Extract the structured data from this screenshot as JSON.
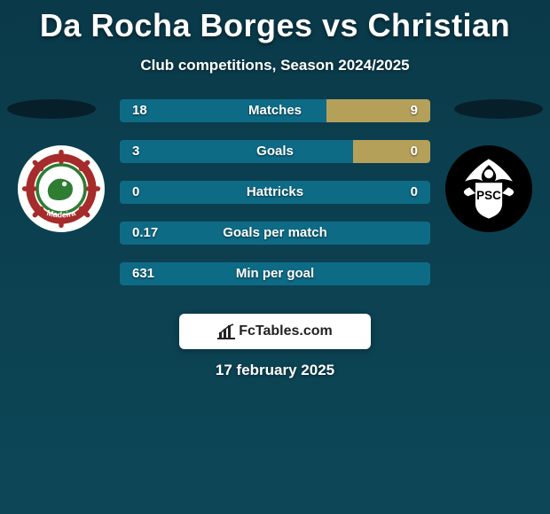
{
  "title": "Da Rocha Borges vs Christian",
  "subtitle": "Club competitions, Season 2024/2025",
  "date": "17 february 2025",
  "brand": "FcTables.com",
  "colors": {
    "bg_gradient_top": "#0a3a4a",
    "bg_gradient_bottom": "#0d4757",
    "bar_primary": "#0e6b86",
    "bar_secondary": "#b5a05a",
    "shadow": "#071e26",
    "card_bg": "#ffffff",
    "text": "#ffffff",
    "brand_text": "#222222"
  },
  "clubs": {
    "left": {
      "name": "Maritimo",
      "logo_bg": "#ffffff"
    },
    "right": {
      "name": "Portimonense",
      "logo_bg": "#000000"
    }
  },
  "stats": [
    {
      "label": "Matches",
      "left_value": "18",
      "right_value": "9",
      "left_bar_pct": 66.7,
      "right_bar_pct": 33.3,
      "left_color": "#0e6b86",
      "right_color": "#b5a05a"
    },
    {
      "label": "Goals",
      "left_value": "3",
      "right_value": "0",
      "left_bar_pct": 75,
      "right_bar_pct": 25,
      "left_color": "#0e6b86",
      "right_color": "#b5a05a"
    },
    {
      "label": "Hattricks",
      "left_value": "0",
      "right_value": "0",
      "left_bar_pct": 100,
      "right_bar_pct": 0,
      "left_color": "#0e6b86",
      "right_color": "#b5a05a"
    },
    {
      "label": "Goals per match",
      "left_value": "0.17",
      "right_value": "",
      "left_bar_pct": 100,
      "right_bar_pct": 0,
      "left_color": "#0e6b86",
      "right_color": "#b5a05a"
    },
    {
      "label": "Min per goal",
      "left_value": "631",
      "right_value": "",
      "left_bar_pct": 100,
      "right_bar_pct": 0,
      "left_color": "#0e6b86",
      "right_color": "#b5a05a"
    }
  ]
}
